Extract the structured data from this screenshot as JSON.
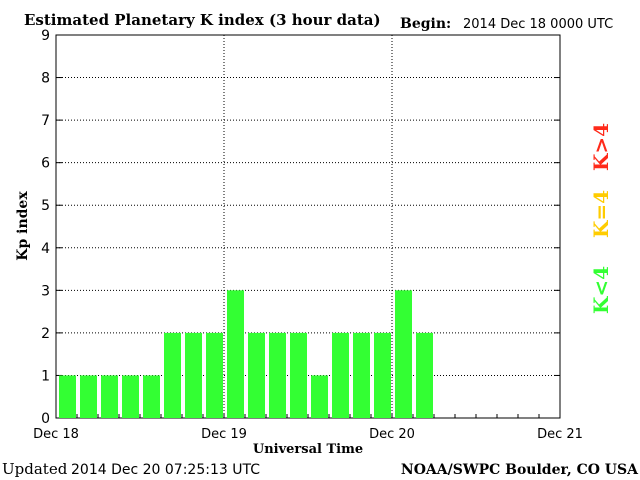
{
  "chart_data": {
    "type": "bar",
    "title": "Estimated Planetary K index (3 hour data)",
    "begin_label": "Begin:",
    "begin_value": "2014 Dec 18 0000 UTC",
    "xlabel": "Universal Time",
    "ylabel": "Kp index",
    "ylim": [
      0,
      9
    ],
    "yticks": [
      "0",
      "1",
      "2",
      "3",
      "4",
      "5",
      "6",
      "7",
      "8",
      "9"
    ],
    "xticks": [
      "Dec 18",
      "Dec 19",
      "Dec 20",
      "Dec 21"
    ],
    "interval_hours": 3,
    "values": [
      1,
      1,
      1,
      1,
      1,
      2,
      2,
      2,
      3,
      2,
      2,
      2,
      1,
      2,
      2,
      2,
      3,
      2
    ],
    "bar_color": "#33ff33",
    "grid": true,
    "legend": [
      {
        "label": "K>4",
        "color": "#ff2a1a"
      },
      {
        "label": "K=4",
        "color": "#ffcc00"
      },
      {
        "label": "K<4",
        "color": "#33ff33"
      }
    ]
  },
  "footer": {
    "updated_label": "Updated",
    "updated_value": "2014 Dec 20 07:25:13 UTC",
    "source": "NOAA/SWPC Boulder, CO USA"
  }
}
